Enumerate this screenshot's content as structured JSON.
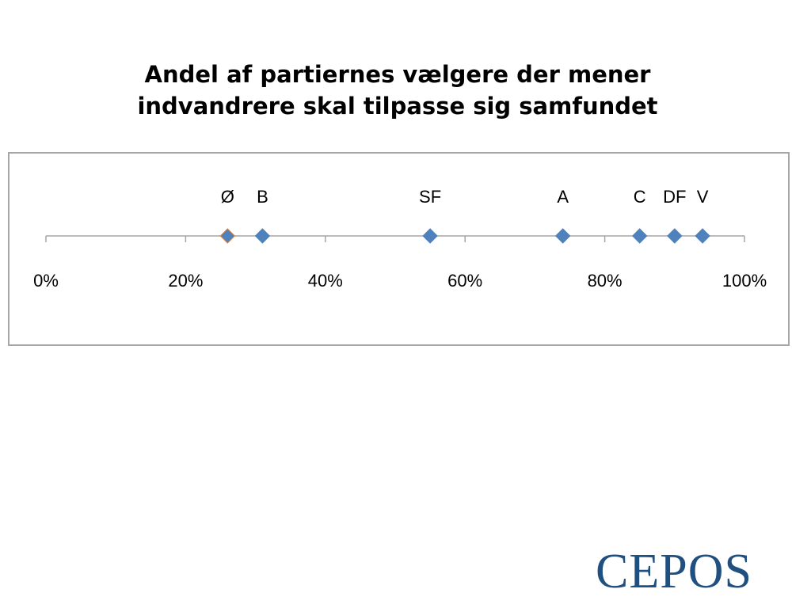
{
  "slide": {
    "title_line1": "Andel af partiernes vælgere der mener",
    "title_line2": "indvandrere skal tilpasse sig samfundet",
    "logo_text": "CEPOS"
  },
  "colors": {
    "axis": "#a6a6a6",
    "marker": "#4f81bd",
    "marker_accent": "#e4802f",
    "frame": "#a6a6a6",
    "logo": "#1f5080"
  },
  "chart_data": {
    "type": "scatter",
    "title": "Andel af partiernes vælgere der mener indvandrere skal tilpasse sig samfundet",
    "xlabel": "",
    "ylabel": "",
    "xlim": [
      0,
      100
    ],
    "x_unit": "%",
    "ticks": [
      0,
      20,
      40,
      60,
      80,
      100
    ],
    "tick_labels": [
      "0%",
      "20%",
      "40%",
      "60%",
      "80%",
      "100%"
    ],
    "grid": false,
    "legend": "none",
    "points": [
      {
        "label": "Ø",
        "x": 26
      },
      {
        "label": "B",
        "x": 31
      },
      {
        "label": "SF",
        "x": 55
      },
      {
        "label": "A",
        "x": 74
      },
      {
        "label": "C",
        "x": 85
      },
      {
        "label": "DF",
        "x": 90
      },
      {
        "label": "V",
        "x": 94
      }
    ]
  }
}
